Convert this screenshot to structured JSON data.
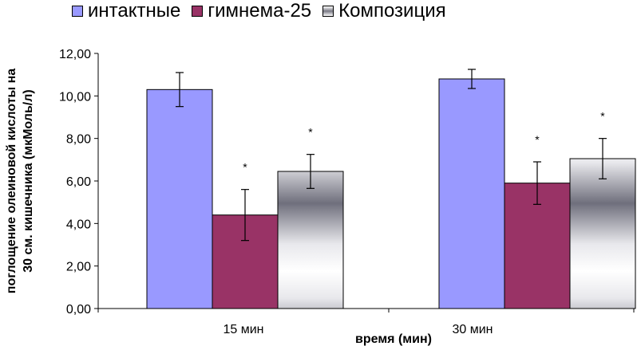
{
  "chart_data": {
    "type": "bar",
    "categories": [
      "15 мин",
      "30 мин"
    ],
    "series": [
      {
        "name": "интактные",
        "values": [
          10.3,
          10.8
        ],
        "errors": [
          0.8,
          0.45
        ],
        "significant": [
          false,
          false
        ],
        "color": "#9999ff",
        "pattern": "solid"
      },
      {
        "name": "гимнема-25",
        "values": [
          4.4,
          5.9
        ],
        "errors": [
          1.2,
          1.0
        ],
        "significant": [
          true,
          true
        ],
        "color": "#993366",
        "pattern": "solid"
      },
      {
        "name": "Композиция",
        "values": [
          6.45,
          7.05
        ],
        "errors": [
          0.8,
          0.95
        ],
        "significant": [
          true,
          true
        ],
        "color": "#b8b8c0",
        "pattern": "horizontal-gradient"
      }
    ],
    "significance_marker": "*",
    "xlabel": "время (мин)",
    "ylabel_lines": [
      "поглощение олеиновой кислоты на",
      "30 см. кишечника (мкМоль/л)"
    ],
    "ylim": [
      0,
      12
    ],
    "yticks": [
      "0,00",
      "2,00",
      "4,00",
      "6,00",
      "8,00",
      "10,00",
      "12,00"
    ],
    "legend_position": "top",
    "grid": false
  }
}
